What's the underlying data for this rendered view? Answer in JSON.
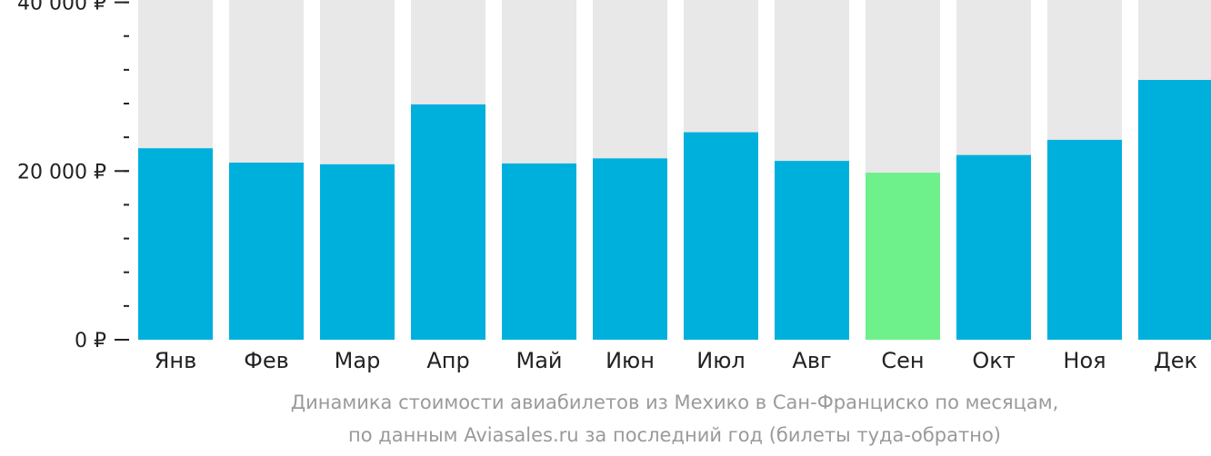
{
  "chart_data": {
    "type": "bar",
    "categories": [
      "Янв",
      "Фев",
      "Мар",
      "Апр",
      "Май",
      "Июн",
      "Июл",
      "Авг",
      "Сен",
      "Окт",
      "Ноя",
      "Дек"
    ],
    "values": [
      22700,
      21000,
      20800,
      27900,
      20900,
      21500,
      24600,
      21200,
      19800,
      21900,
      23700,
      30800
    ],
    "ylim": [
      0,
      42000
    ],
    "y_ticks": [
      {
        "value": 0,
        "label": "0 ₽"
      },
      {
        "value": 20000,
        "label": "20 000 ₽"
      },
      {
        "value": 40000,
        "label": "40 000 ₽"
      }
    ],
    "minor_tick_step": 4000,
    "highlight_index": 8,
    "colors": {
      "bar": "#00b0dc",
      "highlight": "#6ef08a",
      "track": "#e8e8e8",
      "axis": "#222222"
    },
    "caption_line1": "Динамика стоимости авиабилетов из Мехико в Сан-Франциско по месяцам,",
    "caption_line2": "по данным Aviasales.ru за последний год (билеты туда-обратно)"
  }
}
